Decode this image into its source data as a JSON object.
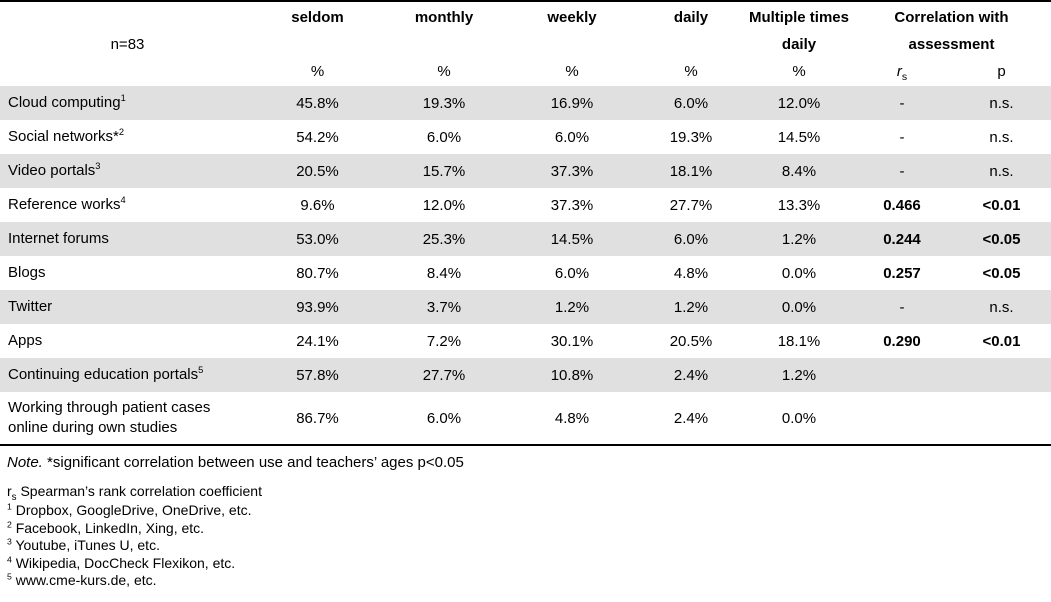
{
  "colors": {
    "stripe": "#e0e0e0",
    "line": "#000000"
  },
  "header": {
    "n_label": "n=83",
    "col_seldom": "seldom",
    "col_monthly": "monthly",
    "col_weekly": "weekly",
    "col_daily": "daily",
    "col_multiple_line1": "Multiple times",
    "col_multiple_line2": "daily",
    "col_corr_line1": "Correlation with",
    "col_corr_line2": "assessment",
    "pct": "%",
    "rs_letter": "r",
    "rs_sub": "s",
    "p_label": "p"
  },
  "rows": [
    {
      "label": "Cloud computing",
      "sup": "1",
      "values": [
        "45.8%",
        "19.3%",
        "16.9%",
        "6.0%",
        "12.0%",
        "-",
        "n.s."
      ],
      "corr_bold": false
    },
    {
      "label": "Social networks*",
      "sup": "2",
      "values": [
        "54.2%",
        "6.0%",
        "6.0%",
        "19.3%",
        "14.5%",
        "-",
        "n.s."
      ],
      "corr_bold": false
    },
    {
      "label": "Video portals",
      "sup": "3",
      "values": [
        "20.5%",
        "15.7%",
        "37.3%",
        "18.1%",
        "8.4%",
        "-",
        "n.s."
      ],
      "corr_bold": false
    },
    {
      "label": "Reference works",
      "sup": "4",
      "values": [
        "9.6%",
        "12.0%",
        "37.3%",
        "27.7%",
        "13.3%",
        "0.466",
        "<0.01"
      ],
      "corr_bold": true
    },
    {
      "label": "Internet forums",
      "sup": "",
      "values": [
        "53.0%",
        "25.3%",
        "14.5%",
        "6.0%",
        "1.2%",
        "0.244",
        "<0.05"
      ],
      "corr_bold": true
    },
    {
      "label": "Blogs",
      "sup": "",
      "values": [
        "80.7%",
        "8.4%",
        "6.0%",
        "4.8%",
        "0.0%",
        "0.257",
        "<0.05"
      ],
      "corr_bold": true
    },
    {
      "label": "Twitter",
      "sup": "",
      "values": [
        "93.9%",
        "3.7%",
        "1.2%",
        "1.2%",
        "0.0%",
        "-",
        "n.s."
      ],
      "corr_bold": false
    },
    {
      "label": "Apps",
      "sup": "",
      "values": [
        "24.1%",
        "7.2%",
        "30.1%",
        "20.5%",
        "18.1%",
        "0.290",
        "<0.01"
      ],
      "corr_bold": true
    },
    {
      "label": "Continuing education portals",
      "sup": "5",
      "values": [
        "57.8%",
        "27.7%",
        "10.8%",
        "2.4%",
        "1.2%",
        "",
        ""
      ],
      "corr_bold": false
    },
    {
      "label": "Working through patient cases online during own studies",
      "sup": "",
      "values": [
        "86.7%",
        "6.0%",
        "4.8%",
        "2.4%",
        "0.0%",
        "",
        ""
      ],
      "corr_bold": false
    }
  ],
  "footnotes": {
    "note_label": "Note.",
    "note_text": " *significant correlation between use and teachers’ ages p<0.05",
    "rs_letter": "r",
    "rs_sub": "s",
    "rs_text": " Spearman’s rank correlation coefficient",
    "items": [
      {
        "sup": "1",
        "text": " Dropbox, GoogleDrive, OneDrive, etc."
      },
      {
        "sup": "2",
        "text": " Facebook, LinkedIn, Xing, etc."
      },
      {
        "sup": "3",
        "text": " Youtube, iTunes U, etc."
      },
      {
        "sup": "4",
        "text": " Wikipedia, DocCheck Flexikon, etc."
      },
      {
        "sup": "5",
        "text": " www.cme-kurs.de, etc."
      }
    ]
  }
}
